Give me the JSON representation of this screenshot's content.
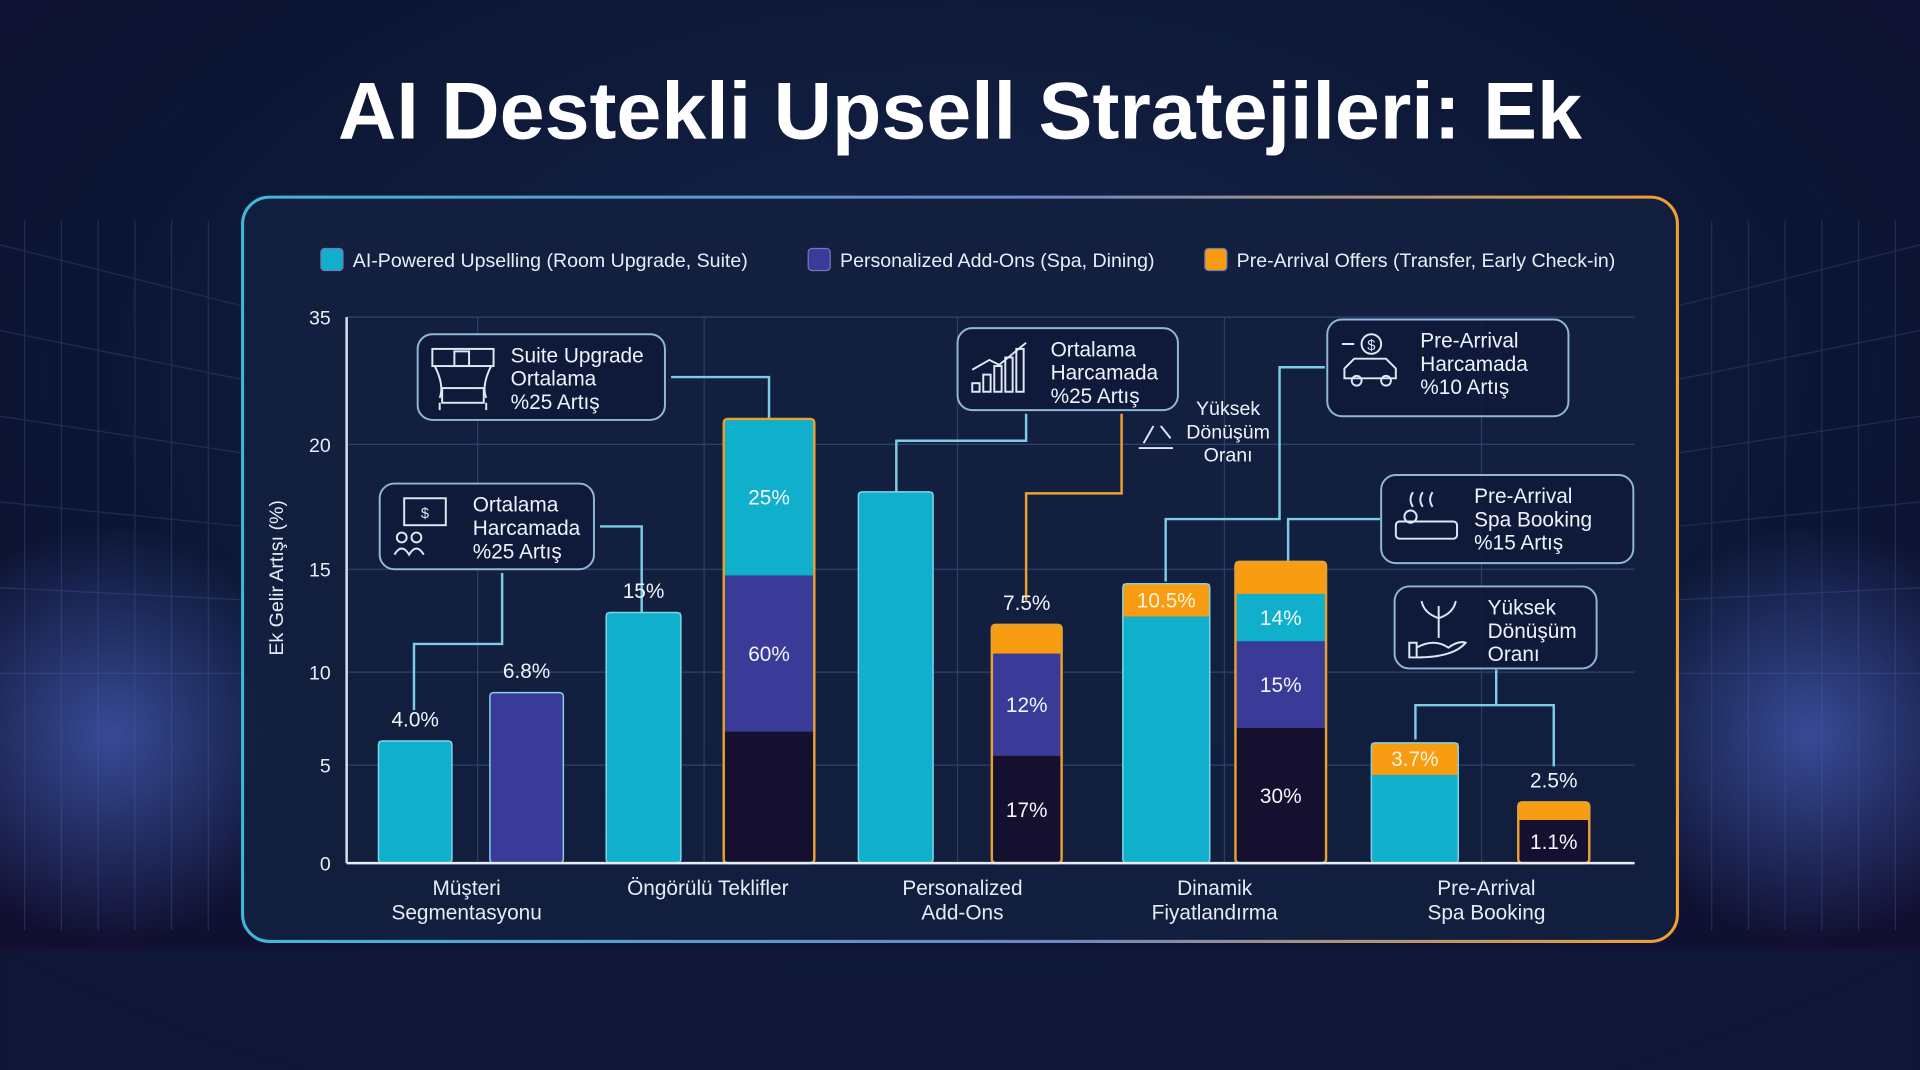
{
  "title": "AI Destekli Upsell Stratejileri: Ek",
  "colors": {
    "ai_upselling": "#10b0cc",
    "personalized_addons": "#3a3a98",
    "pre_arrival": "#f89c12",
    "dark_segment": "#150f30",
    "panel_border_left": "#3fb8d8",
    "panel_border_right": "#f0a030",
    "background": "#0b1430"
  },
  "chart_data": {
    "type": "bar",
    "stacked": "partial",
    "ylabel": "Ek Gelir Artışı (%)",
    "xlabel": "",
    "yticks": [
      0,
      5,
      10,
      15,
      20,
      35
    ],
    "ylim": [
      0,
      35
    ],
    "y_scale": "non-uniform (ticks unevenly spaced as printed)",
    "grid": true,
    "legend_placement": "top",
    "legend": [
      {
        "name": "AI-Powered Upselling (Room Upgrade, Suite)",
        "color": "#10b0cc"
      },
      {
        "name": "Personalized Add-Ons (Spa, Dining)",
        "color": "#3a3a98"
      },
      {
        "name": "Pre-Arrival Offers (Transfer, Early Check-in)",
        "color": "#f89c12"
      }
    ],
    "categories": [
      "Müşteri\nSegmentasyonu",
      "Öngörülü Teklifler",
      "Personalized\nAdd-Ons",
      "Dinamik\nFiyatlandırma",
      "Pre-Arrival\nSpa Booking"
    ],
    "bars": [
      {
        "category": 0,
        "top_label": "4.0%",
        "segments": [
          {
            "series": "ai_upselling",
            "value": 6.3,
            "label": ""
          }
        ]
      },
      {
        "category": 0,
        "top_label": "6.8%",
        "segments": [
          {
            "series": "personalized_addons",
            "value": 8.9,
            "label": ""
          }
        ]
      },
      {
        "category": 1,
        "top_label": "15%",
        "segments": [
          {
            "series": "ai_upselling",
            "value": 12.9,
            "label": ""
          }
        ]
      },
      {
        "category": 1,
        "top_label": "",
        "outlined": true,
        "segments": [
          {
            "series": "dark_segment",
            "value": 6.8,
            "label": ""
          },
          {
            "series": "personalized_addons",
            "value": 7.9,
            "label": "60%"
          },
          {
            "series": "ai_upselling",
            "value": 8.3,
            "label": "25%"
          }
        ]
      },
      {
        "category": 2,
        "top_label": "",
        "segments": [
          {
            "series": "ai_upselling",
            "value": 18.1,
            "label": ""
          }
        ]
      },
      {
        "category": 2,
        "top_label": "7.5%",
        "outlined": true,
        "segments": [
          {
            "series": "dark_segment",
            "value": 5.5,
            "label": "17%"
          },
          {
            "series": "personalized_addons",
            "value": 5.4,
            "label": "12%"
          },
          {
            "series": "pre_arrival",
            "value": 1.4,
            "label": ""
          }
        ]
      },
      {
        "category": 3,
        "top_label": "",
        "segments": [
          {
            "series": "ai_upselling",
            "value": 12.7,
            "label": ""
          },
          {
            "series": "pre_arrival",
            "value": 1.6,
            "label": "10.5%"
          }
        ]
      },
      {
        "category": 3,
        "top_label": "",
        "outlined": true,
        "segments": [
          {
            "series": "dark_segment",
            "value": 7.0,
            "label": "30%"
          },
          {
            "series": "personalized_addons",
            "value": 4.5,
            "label": "15%"
          },
          {
            "series": "ai_upselling",
            "value": 2.3,
            "label": "14%"
          },
          {
            "series": "pre_arrival",
            "value": 1.5,
            "label": ""
          }
        ]
      },
      {
        "category": 4,
        "top_label": "",
        "segments": [
          {
            "series": "ai_upselling",
            "value": 4.5,
            "label": ""
          },
          {
            "series": "pre_arrival",
            "value": 1.7,
            "label": "3.7%"
          }
        ]
      },
      {
        "category": 4,
        "top_label": "2.5%",
        "outlined": true,
        "segments": [
          {
            "series": "dark_segment",
            "value": 2.2,
            "label": "1.1%"
          },
          {
            "series": "pre_arrival",
            "value": 0.9,
            "label": ""
          }
        ]
      }
    ],
    "annotations": [
      {
        "icon": "suite-bed-icon",
        "lines": [
          "Suite Upgrade",
          "Ortalama",
          "%25 Artış"
        ]
      },
      {
        "icon": "money-people-icon",
        "lines": [
          "Ortalama",
          "Harcamada",
          "%25 Artış"
        ]
      },
      {
        "icon": "growth-chart-icon",
        "lines": [
          "Ortalama",
          "Harcamada",
          "%25 Artış"
        ]
      },
      {
        "icon": "conversion-icon",
        "lines": [
          "Yüksek",
          "Dönüşüm",
          "Oranı"
        ],
        "boxed": false
      },
      {
        "icon": "car-dollar-icon",
        "lines": [
          "Pre-Arrival",
          "Harcamada",
          "%10 Artış"
        ]
      },
      {
        "icon": "spa-icon",
        "lines": [
          "Pre-Arrival",
          "Spa Booking",
          "%15 Artış"
        ]
      },
      {
        "icon": "plant-hand-icon",
        "lines": [
          "Yüksek",
          "Dönüşüm",
          "Oranı"
        ]
      }
    ]
  }
}
